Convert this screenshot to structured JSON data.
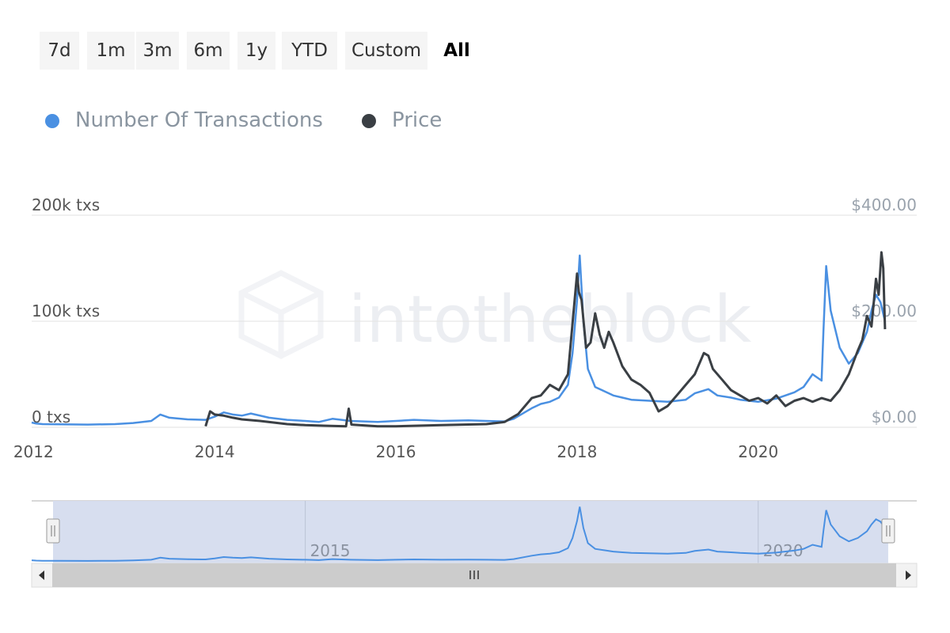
{
  "range_selector": {
    "buttons": [
      "7d",
      "1m",
      "3m",
      "6m",
      "1y",
      "YTD",
      "Custom",
      "All"
    ],
    "selected": "All"
  },
  "legend": {
    "items": [
      {
        "label": "Number Of Transactions",
        "color": "#4a90e2"
      },
      {
        "label": "Price",
        "color": "#3a3f44"
      }
    ]
  },
  "watermark": "intotheblock",
  "colors": {
    "transactions": "#4a90e2",
    "price": "#3a3f44",
    "grid": "#e6e6e6",
    "navigator_mask": "#d5dcee",
    "scrollbar_track": "#cccccc"
  },
  "chart_data": {
    "type": "line",
    "x_tick_labels": [
      "2012",
      "2014",
      "2016",
      "2018",
      "2020"
    ],
    "x_range": [
      2011.98,
      2021.75
    ],
    "y_left": {
      "ticks": [
        "0 txs",
        "100k txs",
        "200k txs"
      ],
      "range": [
        0,
        200000
      ]
    },
    "y_right": {
      "ticks": [
        "$0.00",
        "$200.00",
        "$400.00"
      ],
      "range": [
        0,
        400
      ]
    },
    "grid": true,
    "legend_position": "top-left",
    "series": [
      {
        "name": "Number Of Transactions",
        "axis": "left",
        "points": [
          [
            2011.98,
            4500
          ],
          [
            2012.03,
            3500
          ],
          [
            2012.1,
            3000
          ],
          [
            2012.3,
            2800
          ],
          [
            2012.6,
            2500
          ],
          [
            2012.9,
            3000
          ],
          [
            2013.1,
            4000
          ],
          [
            2013.3,
            6000
          ],
          [
            2013.4,
            12000
          ],
          [
            2013.5,
            9000
          ],
          [
            2013.7,
            7500
          ],
          [
            2013.9,
            7000
          ],
          [
            2014.0,
            10000
          ],
          [
            2014.1,
            14000
          ],
          [
            2014.2,
            12000
          ],
          [
            2014.3,
            11000
          ],
          [
            2014.4,
            13000
          ],
          [
            2014.6,
            9000
          ],
          [
            2014.8,
            7000
          ],
          [
            2015.0,
            6000
          ],
          [
            2015.15,
            5000
          ],
          [
            2015.3,
            8000
          ],
          [
            2015.5,
            6000
          ],
          [
            2015.8,
            5000
          ],
          [
            2016.0,
            6000
          ],
          [
            2016.2,
            7000
          ],
          [
            2016.5,
            6000
          ],
          [
            2016.8,
            6500
          ],
          [
            2017.0,
            6000
          ],
          [
            2017.2,
            5500
          ],
          [
            2017.3,
            8000
          ],
          [
            2017.5,
            18000
          ],
          [
            2017.6,
            22000
          ],
          [
            2017.7,
            24000
          ],
          [
            2017.8,
            28000
          ],
          [
            2017.9,
            40000
          ],
          [
            2017.95,
            70000
          ],
          [
            2018.0,
            120000
          ],
          [
            2018.03,
            162000
          ],
          [
            2018.07,
            100000
          ],
          [
            2018.12,
            55000
          ],
          [
            2018.2,
            38000
          ],
          [
            2018.3,
            34000
          ],
          [
            2018.4,
            30000
          ],
          [
            2018.5,
            28000
          ],
          [
            2018.6,
            26000
          ],
          [
            2018.8,
            25000
          ],
          [
            2019.0,
            24000
          ],
          [
            2019.2,
            26000
          ],
          [
            2019.3,
            32000
          ],
          [
            2019.45,
            36000
          ],
          [
            2019.55,
            30000
          ],
          [
            2019.7,
            28000
          ],
          [
            2019.8,
            26000
          ],
          [
            2020.0,
            24000
          ],
          [
            2020.2,
            27000
          ],
          [
            2020.4,
            33000
          ],
          [
            2020.5,
            38000
          ],
          [
            2020.6,
            50000
          ],
          [
            2020.7,
            44000
          ],
          [
            2020.72,
            90000
          ],
          [
            2020.75,
            152000
          ],
          [
            2020.8,
            110000
          ],
          [
            2020.9,
            75000
          ],
          [
            2021.0,
            60000
          ],
          [
            2021.1,
            70000
          ],
          [
            2021.2,
            90000
          ],
          [
            2021.25,
            110000
          ],
          [
            2021.3,
            125000
          ],
          [
            2021.35,
            118000
          ],
          [
            2021.4,
            100000
          ]
        ]
      },
      {
        "name": "Price",
        "axis": "right",
        "points": [
          [
            2013.9,
            2
          ],
          [
            2013.95,
            30
          ],
          [
            2014.0,
            24
          ],
          [
            2014.1,
            22
          ],
          [
            2014.2,
            18
          ],
          [
            2014.3,
            15
          ],
          [
            2014.5,
            12
          ],
          [
            2014.8,
            6
          ],
          [
            2015.0,
            4
          ],
          [
            2015.2,
            3
          ],
          [
            2015.45,
            2
          ],
          [
            2015.48,
            35
          ],
          [
            2015.51,
            5
          ],
          [
            2015.8,
            2
          ],
          [
            2016.0,
            2
          ],
          [
            2016.5,
            4
          ],
          [
            2017.0,
            6
          ],
          [
            2017.2,
            10
          ],
          [
            2017.35,
            25
          ],
          [
            2017.5,
            55
          ],
          [
            2017.6,
            60
          ],
          [
            2017.7,
            80
          ],
          [
            2017.8,
            70
          ],
          [
            2017.9,
            100
          ],
          [
            2018.0,
            290
          ],
          [
            2018.02,
            255
          ],
          [
            2018.05,
            240
          ],
          [
            2018.1,
            150
          ],
          [
            2018.15,
            160
          ],
          [
            2018.2,
            215
          ],
          [
            2018.25,
            175
          ],
          [
            2018.3,
            150
          ],
          [
            2018.35,
            180
          ],
          [
            2018.4,
            160
          ],
          [
            2018.5,
            115
          ],
          [
            2018.6,
            90
          ],
          [
            2018.7,
            80
          ],
          [
            2018.8,
            65
          ],
          [
            2018.9,
            30
          ],
          [
            2019.0,
            40
          ],
          [
            2019.1,
            60
          ],
          [
            2019.2,
            80
          ],
          [
            2019.3,
            100
          ],
          [
            2019.4,
            140
          ],
          [
            2019.45,
            135
          ],
          [
            2019.5,
            110
          ],
          [
            2019.6,
            90
          ],
          [
            2019.7,
            70
          ],
          [
            2019.8,
            60
          ],
          [
            2019.9,
            50
          ],
          [
            2020.0,
            55
          ],
          [
            2020.1,
            45
          ],
          [
            2020.2,
            60
          ],
          [
            2020.3,
            40
          ],
          [
            2020.4,
            50
          ],
          [
            2020.5,
            55
          ],
          [
            2020.6,
            48
          ],
          [
            2020.7,
            55
          ],
          [
            2020.8,
            50
          ],
          [
            2020.9,
            70
          ],
          [
            2021.0,
            100
          ],
          [
            2021.1,
            145
          ],
          [
            2021.15,
            165
          ],
          [
            2021.2,
            210
          ],
          [
            2021.25,
            190
          ],
          [
            2021.3,
            280
          ],
          [
            2021.33,
            250
          ],
          [
            2021.36,
            330
          ],
          [
            2021.38,
            300
          ],
          [
            2021.4,
            185
          ]
        ]
      }
    ],
    "navigator": {
      "tick_labels": [
        "2015",
        "2020"
      ],
      "selection": [
        2011.98,
        2021.4
      ]
    }
  }
}
